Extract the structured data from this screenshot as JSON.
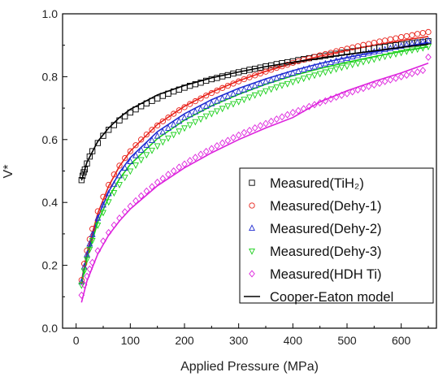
{
  "chart_data": {
    "type": "scatter",
    "xlabel": "Applied Pressure (MPa)",
    "ylabel": "V*",
    "xlim": [
      -25,
      665
    ],
    "ylim": [
      0.0,
      1.0
    ],
    "x_ticks": [
      0,
      100,
      200,
      300,
      400,
      500,
      600
    ],
    "y_ticks": [
      0.0,
      0.2,
      0.4,
      0.6,
      0.8,
      1.0
    ],
    "x_tick_labels": [
      "0",
      "100",
      "200",
      "300",
      "400",
      "500",
      "600"
    ],
    "y_tick_labels": [
      "0.0",
      "0.2",
      "0.4",
      "0.6",
      "0.8",
      "1.0"
    ],
    "grid": false,
    "legend_position": "bottom-right",
    "series": [
      {
        "name": "Measured(TiH₂)",
        "marker": "square",
        "color": "#000000",
        "x": [
          10,
          12,
          14,
          16,
          20,
          25,
          30,
          40,
          50,
          60,
          70,
          80,
          90,
          100,
          110,
          120,
          130,
          140,
          150,
          160,
          170,
          180,
          190,
          200,
          210,
          220,
          230,
          240,
          250,
          260,
          270,
          280,
          290,
          300,
          310,
          320,
          330,
          340,
          350,
          360,
          370,
          380,
          390,
          400,
          410,
          420,
          430,
          440,
          450,
          460,
          470,
          480,
          490,
          500,
          510,
          520,
          530,
          540,
          550,
          560,
          570,
          580,
          590,
          600,
          610,
          620,
          630,
          640,
          650
        ],
        "y": [
          0.471,
          0.485,
          0.496,
          0.505,
          0.524,
          0.546,
          0.563,
          0.589,
          0.612,
          0.631,
          0.646,
          0.661,
          0.674,
          0.686,
          0.696,
          0.706,
          0.715,
          0.723,
          0.731,
          0.739,
          0.746,
          0.753,
          0.759,
          0.765,
          0.771,
          0.776,
          0.781,
          0.787,
          0.792,
          0.796,
          0.801,
          0.805,
          0.81,
          0.814,
          0.818,
          0.822,
          0.825,
          0.829,
          0.833,
          0.836,
          0.84,
          0.843,
          0.846,
          0.849,
          0.853,
          0.856,
          0.859,
          0.862,
          0.864,
          0.867,
          0.87,
          0.873,
          0.876,
          0.878,
          0.881,
          0.883,
          0.886,
          0.888,
          0.891,
          0.893,
          0.895,
          0.898,
          0.9,
          0.902,
          0.904,
          0.907,
          0.909,
          0.911,
          0.913
        ]
      },
      {
        "name": "Measured(Dehy-1)",
        "marker": "circle",
        "color": "#e8231b",
        "x": [
          10,
          15,
          20,
          25,
          30,
          40,
          50,
          60,
          70,
          80,
          90,
          100,
          110,
          120,
          130,
          140,
          150,
          160,
          170,
          180,
          190,
          200,
          210,
          220,
          230,
          240,
          250,
          260,
          270,
          280,
          290,
          300,
          310,
          320,
          330,
          340,
          350,
          360,
          370,
          380,
          390,
          400,
          410,
          420,
          430,
          440,
          450,
          460,
          470,
          480,
          490,
          500,
          510,
          520,
          530,
          540,
          550,
          560,
          570,
          580,
          590,
          600,
          610,
          620,
          630,
          640,
          650
        ],
        "y": [
          0.153,
          0.205,
          0.247,
          0.283,
          0.316,
          0.372,
          0.418,
          0.456,
          0.489,
          0.517,
          0.541,
          0.563,
          0.582,
          0.6,
          0.616,
          0.631,
          0.645,
          0.658,
          0.67,
          0.682,
          0.693,
          0.703,
          0.713,
          0.722,
          0.731,
          0.74,
          0.748,
          0.756,
          0.764,
          0.771,
          0.778,
          0.785,
          0.792,
          0.798,
          0.804,
          0.81,
          0.816,
          0.822,
          0.828,
          0.833,
          0.838,
          0.844,
          0.849,
          0.854,
          0.858,
          0.863,
          0.868,
          0.872,
          0.876,
          0.881,
          0.885,
          0.889,
          0.893,
          0.897,
          0.901,
          0.904,
          0.908,
          0.912,
          0.915,
          0.919,
          0.922,
          0.926,
          0.929,
          0.932,
          0.936,
          0.939,
          0.942
        ]
      },
      {
        "name": "Measured(Dehy-2)",
        "marker": "triangle-up",
        "color": "#1f2bd1",
        "x": [
          10,
          15,
          20,
          25,
          30,
          40,
          50,
          60,
          70,
          80,
          90,
          100,
          110,
          120,
          130,
          140,
          150,
          160,
          170,
          180,
          190,
          200,
          210,
          220,
          230,
          240,
          250,
          260,
          270,
          280,
          290,
          300,
          310,
          320,
          330,
          340,
          350,
          360,
          370,
          380,
          390,
          400,
          410,
          420,
          430,
          440,
          450,
          460,
          470,
          480,
          490,
          500,
          510,
          520,
          530,
          540,
          550,
          560,
          570,
          580,
          590,
          600,
          610,
          620,
          630,
          640,
          650
        ],
        "y": [
          0.147,
          0.195,
          0.234,
          0.268,
          0.298,
          0.35,
          0.392,
          0.428,
          0.458,
          0.485,
          0.509,
          0.53,
          0.549,
          0.566,
          0.582,
          0.597,
          0.611,
          0.624,
          0.636,
          0.647,
          0.658,
          0.669,
          0.679,
          0.688,
          0.697,
          0.706,
          0.714,
          0.722,
          0.73,
          0.737,
          0.745,
          0.752,
          0.758,
          0.765,
          0.771,
          0.778,
          0.784,
          0.789,
          0.795,
          0.801,
          0.806,
          0.811,
          0.817,
          0.822,
          0.827,
          0.831,
          0.836,
          0.841,
          0.845,
          0.85,
          0.854,
          0.858,
          0.863,
          0.867,
          0.871,
          0.875,
          0.879,
          0.882,
          0.886,
          0.89,
          0.894,
          0.897,
          0.901,
          0.904,
          0.908,
          0.911,
          0.914
        ]
      },
      {
        "name": "Measured(Dehy-3)",
        "marker": "triangle-down",
        "color": "#18cf18",
        "x": [
          10,
          15,
          20,
          25,
          30,
          40,
          50,
          60,
          70,
          80,
          90,
          100,
          110,
          120,
          130,
          140,
          150,
          160,
          170,
          180,
          190,
          200,
          210,
          220,
          230,
          240,
          250,
          260,
          270,
          280,
          290,
          300,
          310,
          320,
          330,
          340,
          350,
          360,
          370,
          380,
          390,
          400,
          410,
          420,
          430,
          440,
          450,
          460,
          470,
          480,
          490,
          500,
          510,
          520,
          530,
          540,
          550,
          560,
          570,
          580,
          590,
          600,
          610,
          620,
          630,
          640,
          650
        ],
        "y": [
          0.137,
          0.182,
          0.219,
          0.251,
          0.279,
          0.328,
          0.368,
          0.402,
          0.431,
          0.457,
          0.48,
          0.5,
          0.519,
          0.536,
          0.552,
          0.566,
          0.58,
          0.593,
          0.605,
          0.616,
          0.627,
          0.637,
          0.647,
          0.657,
          0.666,
          0.675,
          0.683,
          0.691,
          0.699,
          0.707,
          0.714,
          0.721,
          0.728,
          0.735,
          0.742,
          0.748,
          0.755,
          0.761,
          0.767,
          0.773,
          0.778,
          0.784,
          0.789,
          0.795,
          0.8,
          0.805,
          0.81,
          0.815,
          0.82,
          0.825,
          0.83,
          0.834,
          0.839,
          0.843,
          0.848,
          0.852,
          0.856,
          0.861,
          0.865,
          0.869,
          0.873,
          0.877,
          0.881,
          0.885,
          0.888,
          0.892,
          0.896
        ]
      },
      {
        "name": "Measured(HDH Ti)",
        "marker": "diamond",
        "color": "#dd22dd",
        "x": [
          10,
          15,
          20,
          25,
          30,
          40,
          50,
          60,
          70,
          80,
          90,
          100,
          110,
          120,
          130,
          140,
          150,
          160,
          170,
          180,
          190,
          200,
          210,
          220,
          230,
          240,
          250,
          260,
          270,
          280,
          290,
          300,
          310,
          320,
          330,
          340,
          350,
          360,
          370,
          380,
          390,
          400,
          410,
          420,
          430,
          440,
          450,
          460,
          470,
          480,
          490,
          500,
          510,
          520,
          530,
          540,
          550,
          560,
          570,
          580,
          590,
          600,
          610,
          620,
          630,
          640,
          650
        ],
        "y": [
          0.105,
          0.138,
          0.165,
          0.188,
          0.209,
          0.246,
          0.277,
          0.304,
          0.328,
          0.35,
          0.37,
          0.388,
          0.405,
          0.421,
          0.436,
          0.45,
          0.464,
          0.476,
          0.489,
          0.5,
          0.512,
          0.522,
          0.533,
          0.543,
          0.553,
          0.562,
          0.571,
          0.58,
          0.589,
          0.597,
          0.606,
          0.614,
          0.622,
          0.629,
          0.637,
          0.644,
          0.651,
          0.658,
          0.665,
          0.672,
          0.679,
          0.686,
          0.692,
          0.698,
          0.705,
          0.711,
          0.717,
          0.723,
          0.729,
          0.735,
          0.741,
          0.746,
          0.752,
          0.758,
          0.763,
          0.769,
          0.774,
          0.779,
          0.785,
          0.79,
          0.795,
          0.8,
          0.805,
          0.81,
          0.815,
          0.82,
          0.862
        ]
      },
      {
        "name": "Cooper-Eaton model",
        "marker": "line",
        "color": "#000000",
        "x": [
          10,
          20,
          40,
          60,
          80,
          100,
          150,
          200,
          250,
          300,
          350,
          400,
          450,
          500,
          550,
          600,
          650
        ],
        "y": [
          0.47,
          0.528,
          0.594,
          0.637,
          0.67,
          0.696,
          0.742,
          0.772,
          0.796,
          0.815,
          0.832,
          0.846,
          0.859,
          0.871,
          0.882,
          0.893,
          0.903
        ]
      }
    ],
    "fit_lines": [
      {
        "color": "#e8231b",
        "x": [
          10,
          20,
          40,
          60,
          80,
          100,
          150,
          200,
          250,
          300,
          350,
          400,
          450,
          500,
          550,
          600,
          650
        ],
        "y": [
          0.15,
          0.24,
          0.365,
          0.452,
          0.515,
          0.563,
          0.648,
          0.706,
          0.751,
          0.787,
          0.817,
          0.843,
          0.866,
          0.884,
          0.9,
          0.915,
          0.928
        ]
      },
      {
        "color": "#1f2bd1",
        "x": [
          10,
          20,
          40,
          60,
          80,
          100,
          150,
          200,
          250,
          300,
          350,
          400,
          450,
          500,
          550,
          600,
          650
        ],
        "y": [
          0.145,
          0.232,
          0.352,
          0.434,
          0.495,
          0.542,
          0.625,
          0.682,
          0.727,
          0.763,
          0.793,
          0.819,
          0.842,
          0.861,
          0.878,
          0.894,
          0.909
        ]
      },
      {
        "color": "#18cf18",
        "x": [
          10,
          20,
          40,
          60,
          80,
          100,
          150,
          200,
          250,
          300,
          350,
          400,
          450,
          500,
          550,
          600,
          650
        ],
        "y": [
          0.14,
          0.222,
          0.337,
          0.416,
          0.475,
          0.521,
          0.603,
          0.662,
          0.707,
          0.744,
          0.776,
          0.803,
          0.826,
          0.846,
          0.864,
          0.88,
          0.895
        ]
      },
      {
        "color": "#dd22dd",
        "x": [
          10,
          20,
          40,
          60,
          80,
          100,
          150,
          200,
          250,
          300,
          350,
          400,
          450,
          500,
          550,
          600,
          650
        ],
        "y": [
          0.082,
          0.15,
          0.236,
          0.296,
          0.341,
          0.379,
          0.453,
          0.51,
          0.558,
          0.6,
          0.637,
          0.67,
          0.72,
          0.755,
          0.785,
          0.812,
          0.843
        ]
      }
    ]
  }
}
